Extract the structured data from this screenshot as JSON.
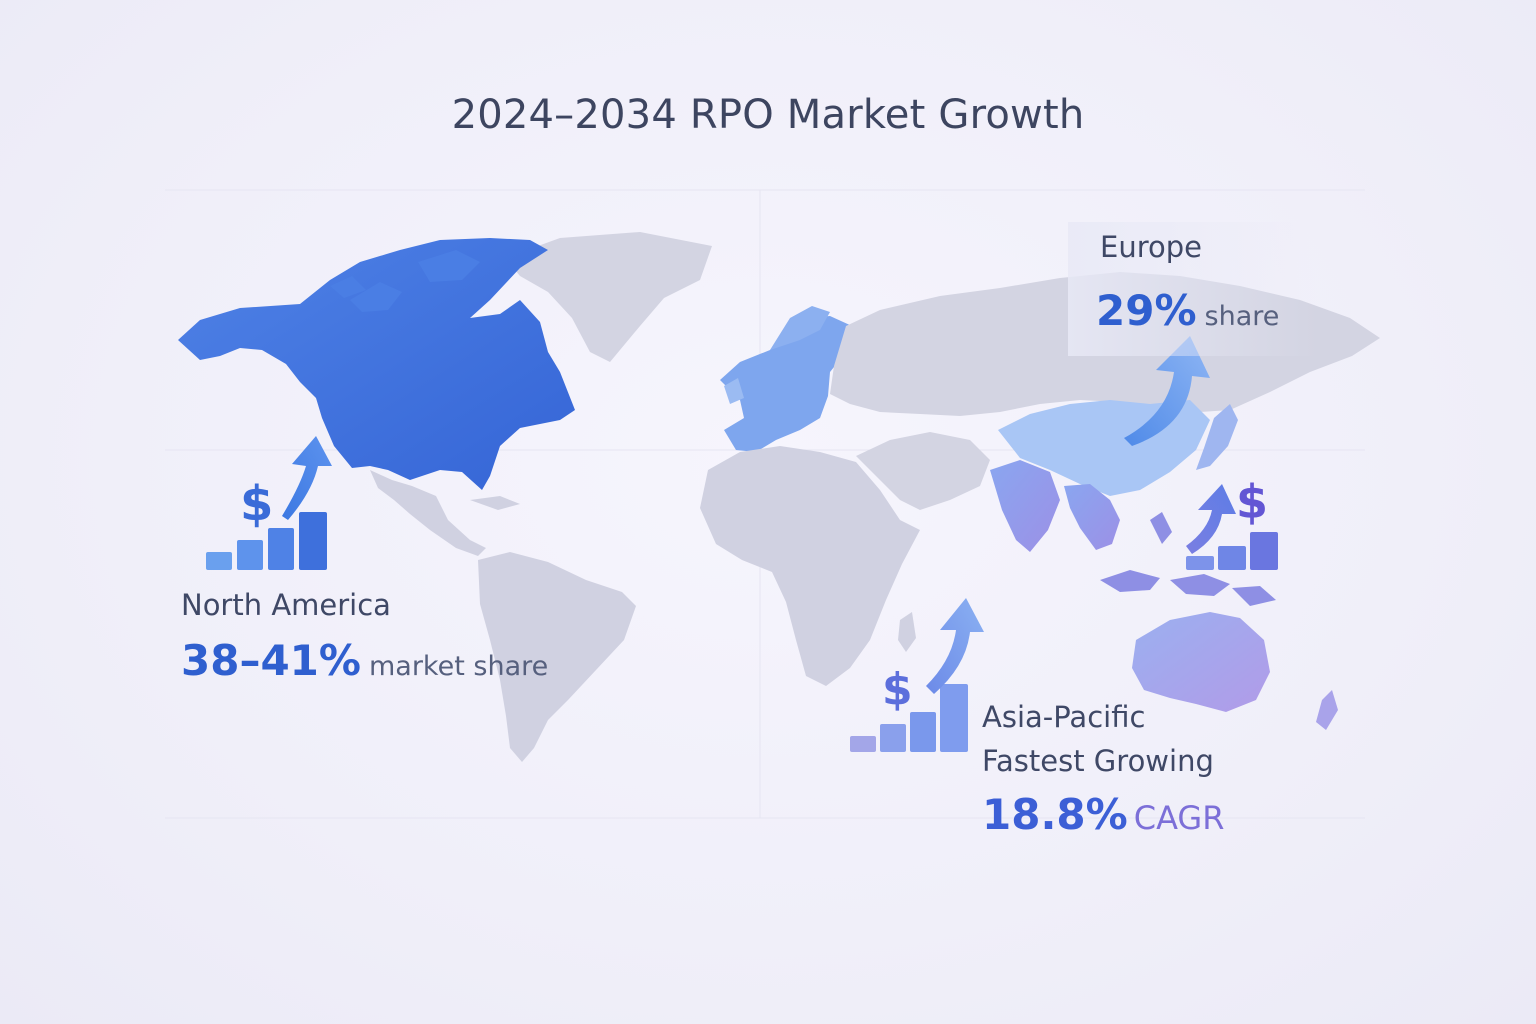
{
  "title": "2024–2034 RPO Market Growth",
  "regions": {
    "north_america": {
      "name": "North America",
      "value": "38–41%",
      "unit": "market share"
    },
    "europe": {
      "name": "Europe",
      "value": "29%",
      "unit": "share"
    },
    "asia_pacific": {
      "name": "Asia-Pacific",
      "subtitle": "Fastest Growing",
      "value": "18.8%",
      "unit": "CAGR"
    }
  },
  "icons": {
    "dollar_symbol": "$",
    "north_america": "dollar-growth-chart-icon",
    "asia_pacific": "dollar-growth-chart-icon",
    "east_asia": "dollar-growth-chart-icon",
    "europe": "growth-arrow-icon"
  },
  "colors": {
    "north_america": "#3f72dc",
    "europe": "#7da6ee",
    "asia_pacific": "#8f9be8",
    "china": "#a9c6f5",
    "australia": "#a2a6ec",
    "land_other": "#d5d6e4",
    "title": "#3d4560",
    "accent": "#2f5fcf"
  }
}
